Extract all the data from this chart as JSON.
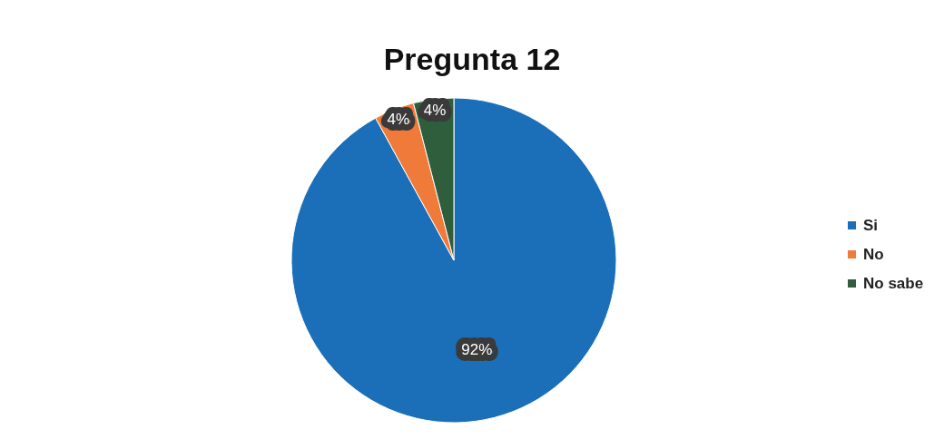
{
  "chart_data": {
    "type": "pie",
    "title": "Pregunta 12",
    "categories": [
      "Si",
      "No",
      "No sabe"
    ],
    "values": [
      92,
      4,
      4
    ],
    "colors": [
      "#1a6fb8",
      "#f07a3a",
      "#2f5e3c"
    ],
    "value_labels": [
      "92%",
      "4%",
      "4%"
    ],
    "legend": "right"
  }
}
